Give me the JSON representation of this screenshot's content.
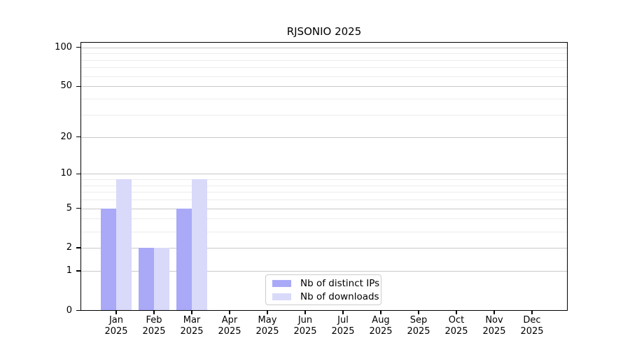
{
  "figure": {
    "background": "#ffffff"
  },
  "chart_data": {
    "type": "bar",
    "title": "RJSONIO 2025",
    "categories": [
      "Jan",
      "Feb",
      "Mar",
      "Apr",
      "May",
      "Jun",
      "Jul",
      "Aug",
      "Sep",
      "Oct",
      "Nov",
      "Dec"
    ],
    "x_tick_year": "2025",
    "series": [
      {
        "name": "Nb of distinct IPs",
        "color": "#a9a9f8",
        "values": [
          5,
          2,
          5,
          0,
          0,
          0,
          0,
          0,
          0,
          0,
          0,
          0
        ]
      },
      {
        "name": "Nb of downloads",
        "color": "#d9d9fa",
        "values": [
          9,
          2,
          9,
          0,
          0,
          0,
          0,
          0,
          0,
          0,
          0,
          0
        ]
      }
    ],
    "y_axis": {
      "scale": "log10(1+v)",
      "major_ticks": [
        0,
        1,
        2,
        5,
        10,
        20,
        50,
        100
      ],
      "minor_ticks": [
        3,
        4,
        6,
        7,
        8,
        9,
        30,
        40,
        60,
        70,
        80,
        90
      ],
      "ylim": [
        0,
        110
      ]
    },
    "grid": "on",
    "legend_position": "lower center"
  },
  "colors": {
    "bar_ips": "#a9a9f8",
    "bar_downloads": "#d9d9fa",
    "grid_major": "#c9c9c9",
    "grid_minor": "#ececec",
    "spine": "#000000",
    "text": "#000000",
    "legend_border": "#cccccc",
    "legend_background": "#ffffff"
  }
}
